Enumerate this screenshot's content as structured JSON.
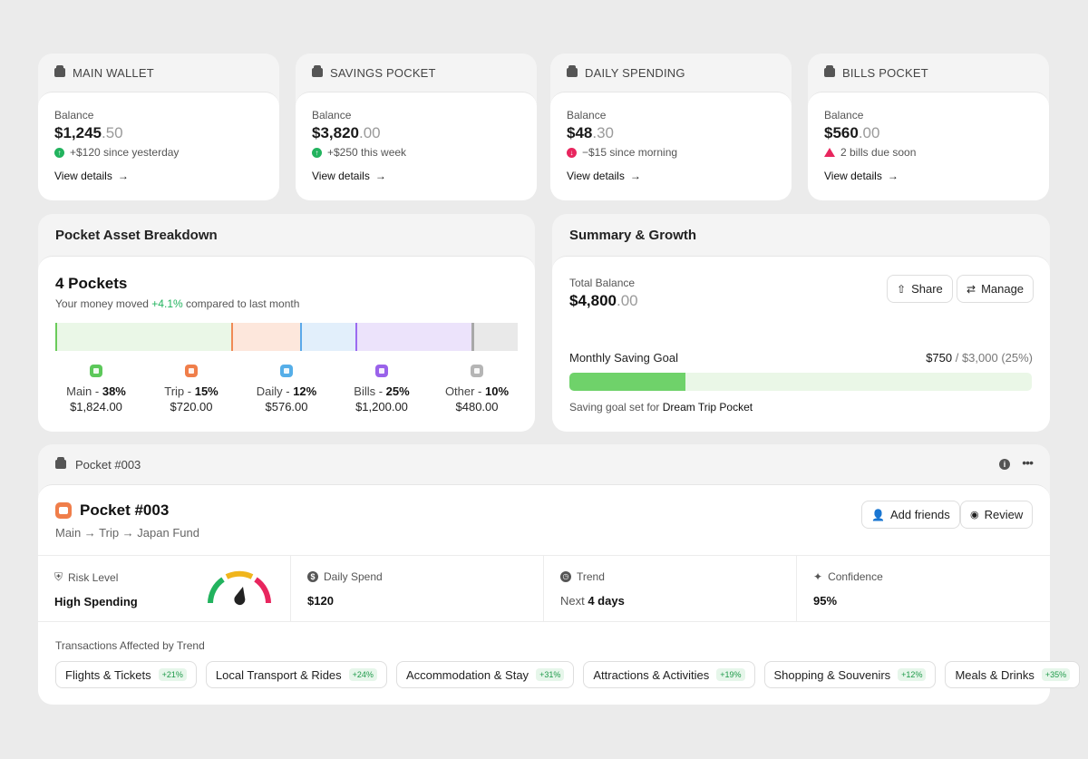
{
  "wallets": [
    {
      "title": "MAIN WALLET",
      "label": "Balance",
      "amount_main": "$1,245",
      "amount_cents": ".50",
      "change": "+$120 since yesterday",
      "trend": "up",
      "link": "View details"
    },
    {
      "title": "SAVINGS POCKET",
      "label": "Balance",
      "amount_main": "$3,820",
      "amount_cents": ".00",
      "change": "+$250 this week",
      "trend": "up",
      "link": "View details"
    },
    {
      "title": "DAILY SPENDING",
      "label": "Balance",
      "amount_main": "$48",
      "amount_cents": ".30",
      "change": "−$15 since morning",
      "trend": "down",
      "link": "View details"
    },
    {
      "title": "BILLS POCKET",
      "label": "Balance",
      "amount_main": "$560",
      "amount_cents": ".00",
      "change": "2 bills due soon",
      "trend": "warning",
      "link": "View details"
    }
  ],
  "breakdown": {
    "title": "Pocket Asset Breakdown",
    "count_label": "4 Pockets",
    "moved_prefix": "Your money moved ",
    "moved_value": "+4.1%",
    "moved_suffix": " compared to last month",
    "segments": [
      {
        "name": "Main",
        "percent": 38,
        "pct_label": "38%",
        "amount": "$1,824.00",
        "fill": "#eaf7e7",
        "edge": "#6acb5a",
        "icon_color": "#5cc85a"
      },
      {
        "name": "Trip",
        "percent": 15,
        "pct_label": "15%",
        "amount": "$720.00",
        "fill": "#fde7dc",
        "edge": "#f08a56",
        "icon_color": "#f07e4a"
      },
      {
        "name": "Daily",
        "percent": 12,
        "pct_label": "12%",
        "amount": "$576.00",
        "fill": "#e2effb",
        "edge": "#5ba9ea",
        "icon_color": "#55aee8"
      },
      {
        "name": "Bills",
        "percent": 25,
        "pct_label": "25%",
        "amount": "$1,200.00",
        "fill": "#ece3fb",
        "edge": "#9b6bf0",
        "icon_color": "#9a62ea"
      },
      {
        "name": "Other",
        "percent": 10,
        "pct_label": "10%",
        "amount": "$480.00",
        "fill": "#e9e9e9",
        "edge": "#a8a8a8",
        "icon_color": "#b5b5b5"
      }
    ]
  },
  "summary": {
    "title": "Summary & Growth",
    "total_label": "Total Balance",
    "total_main": "$4,800",
    "total_cents": ".00",
    "share_label": "Share",
    "manage_label": "Manage",
    "goal_label": "Monthly Saving Goal",
    "goal_current": "$750",
    "goal_rest": " / $3,000 (25%)",
    "goal_fraction": 0.25,
    "note_prefix": "Saving goal set for ",
    "note_target": "Dream Trip Pocket"
  },
  "pocket": {
    "head_title": "Pocket #003",
    "name": "Pocket #003",
    "path": "Main → Trip → Japan Fund",
    "add_friends_label": "Add friends",
    "review_label": "Review",
    "metrics": {
      "risk_label": "Risk Level",
      "risk_value": "High Spending",
      "daily_label": "Daily Spend",
      "daily_value": "$120",
      "trend_label": "Trend",
      "trend_prefix": "Next ",
      "trend_value": "4 days",
      "confidence_label": "Confidence",
      "confidence_value": "95%"
    },
    "transactions_label": "Transactions Affected by Trend",
    "transactions": [
      {
        "name": "Flights & Tickets",
        "change": "+21%"
      },
      {
        "name": "Local Transport & Rides",
        "change": "+24%"
      },
      {
        "name": "Accommodation & Stay",
        "change": "+31%"
      },
      {
        "name": "Attractions & Activities",
        "change": "+19%"
      },
      {
        "name": "Shopping & Souvenirs",
        "change": "+12%"
      },
      {
        "name": "Meals & Drinks",
        "change": "+35%"
      }
    ]
  },
  "colors": {
    "accent_green": "#22b35e",
    "alert_red": "#e8265e",
    "progress_green": "#6fd26a",
    "progress_track": "#eaf7e7",
    "pocket_orange": "#f07e4a"
  }
}
